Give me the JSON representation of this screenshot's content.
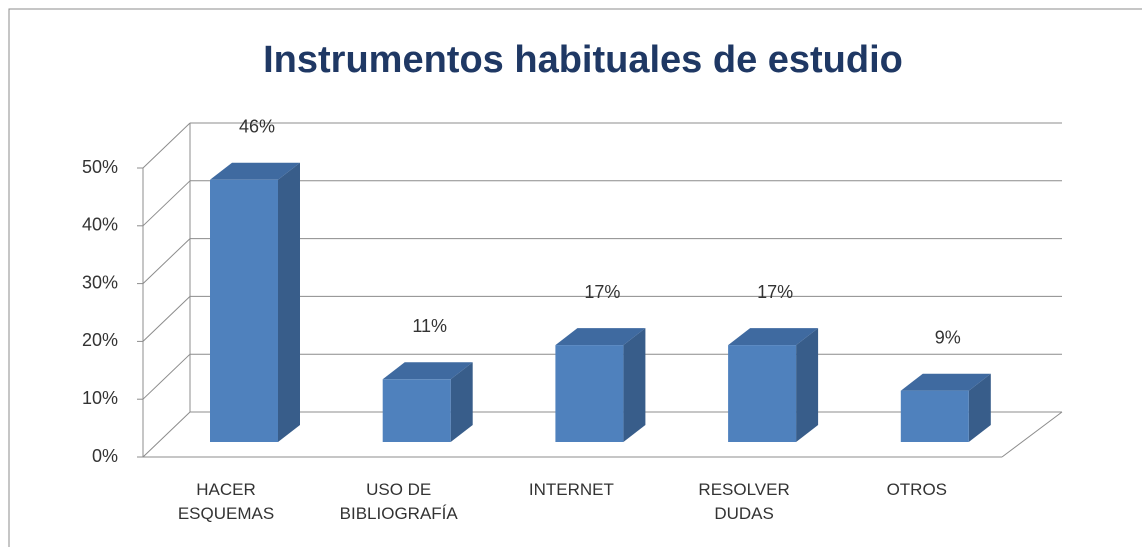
{
  "chart_data": {
    "type": "bar3d",
    "title": "Instrumentos habituales de estudio",
    "categories": [
      "HACER ESQUEMAS",
      "USO DE BIBLIOGRAFÍA",
      "INTERNET",
      "RESOLVER DUDAS",
      "OTROS"
    ],
    "values": [
      46,
      11,
      17,
      17,
      9
    ],
    "value_labels": [
      "46%",
      "11%",
      "17%",
      "17%",
      "9%"
    ],
    "color": "#4f81bd",
    "ylim": [
      0,
      50
    ],
    "yticks": [
      {
        "value": 0,
        "label": "0%"
      },
      {
        "value": 10,
        "label": "10%"
      },
      {
        "value": 20,
        "label": "20%"
      },
      {
        "value": 30,
        "label": "30%"
      },
      {
        "value": 40,
        "label": "40%"
      },
      {
        "value": 50,
        "label": "50%"
      }
    ],
    "grid": true
  }
}
